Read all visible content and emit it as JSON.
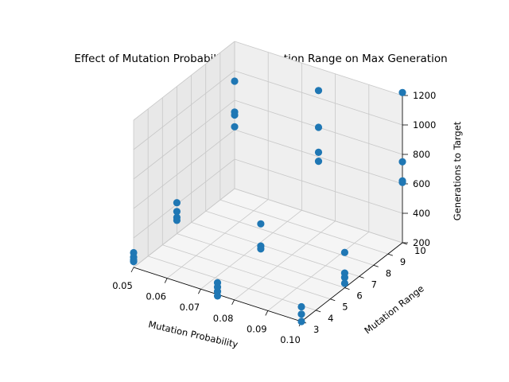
{
  "chart_data": {
    "type": "scatter",
    "projection": "3d",
    "title": "Effect of Mutation Probability and Mutation Range on Max Generation",
    "xlabel": "Mutation Probability",
    "ylabel": "Mutation Range",
    "zlabel": "Generations to Target",
    "xlim": [
      0.05,
      0.1
    ],
    "ylim": [
      3,
      10
    ],
    "zlim": [
      200,
      1200
    ],
    "xticks": [
      "0.05",
      "0.06",
      "0.07",
      "0.08",
      "0.09",
      "0.10"
    ],
    "yticks": [
      "3",
      "4",
      "5",
      "6",
      "7",
      "8",
      "9",
      "10"
    ],
    "zticks": [
      "200",
      "400",
      "600",
      "800",
      "1000",
      "1200"
    ],
    "grid": true,
    "marker_color": "#1f77b4",
    "points": [
      {
        "x": 0.05,
        "y": 3,
        "z": 300
      },
      {
        "x": 0.05,
        "y": 3,
        "z": 270
      },
      {
        "x": 0.05,
        "y": 3,
        "z": 250
      },
      {
        "x": 0.05,
        "y": 3,
        "z": 240
      },
      {
        "x": 0.05,
        "y": 6,
        "z": 410
      },
      {
        "x": 0.05,
        "y": 6,
        "z": 350
      },
      {
        "x": 0.05,
        "y": 6,
        "z": 310
      },
      {
        "x": 0.05,
        "y": 6,
        "z": 290
      },
      {
        "x": 0.05,
        "y": 10,
        "z": 930
      },
      {
        "x": 0.05,
        "y": 10,
        "z": 720
      },
      {
        "x": 0.05,
        "y": 10,
        "z": 700
      },
      {
        "x": 0.05,
        "y": 10,
        "z": 620
      },
      {
        "x": 0.075,
        "y": 3,
        "z": 280
      },
      {
        "x": 0.075,
        "y": 3,
        "z": 250
      },
      {
        "x": 0.075,
        "y": 3,
        "z": 220
      },
      {
        "x": 0.075,
        "y": 3,
        "z": 190
      },
      {
        "x": 0.075,
        "y": 6,
        "z": 450
      },
      {
        "x": 0.075,
        "y": 6,
        "z": 300
      },
      {
        "x": 0.075,
        "y": 6,
        "z": 280
      },
      {
        "x": 0.075,
        "y": 10,
        "z": 1050
      },
      {
        "x": 0.075,
        "y": 10,
        "z": 800
      },
      {
        "x": 0.075,
        "y": 10,
        "z": 630
      },
      {
        "x": 0.075,
        "y": 10,
        "z": 570
      },
      {
        "x": 0.1,
        "y": 3,
        "z": 300
      },
      {
        "x": 0.1,
        "y": 3,
        "z": 250
      },
      {
        "x": 0.1,
        "y": 3,
        "z": 200
      },
      {
        "x": 0.1,
        "y": 6,
        "z": 440
      },
      {
        "x": 0.1,
        "y": 6,
        "z": 300
      },
      {
        "x": 0.1,
        "y": 6,
        "z": 270
      },
      {
        "x": 0.1,
        "y": 6,
        "z": 230
      },
      {
        "x": 0.1,
        "y": 10,
        "z": 1220
      },
      {
        "x": 0.1,
        "y": 10,
        "z": 750
      },
      {
        "x": 0.1,
        "y": 10,
        "z": 620
      },
      {
        "x": 0.1,
        "y": 10,
        "z": 610
      }
    ]
  }
}
